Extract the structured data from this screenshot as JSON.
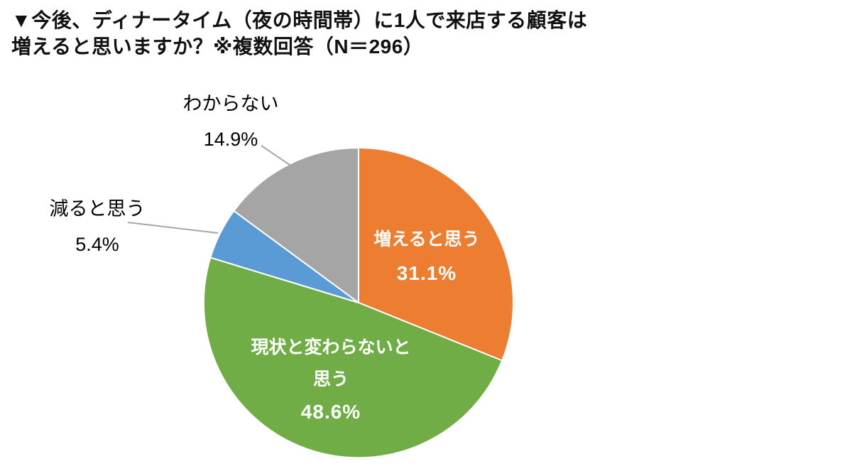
{
  "title": {
    "line1": "▼今後、ディナータイム（夜の時間帯）に1人で来店する顧客は",
    "line2": "増えると思いますか？※複数回答（N＝296）"
  },
  "chart_data": {
    "type": "pie",
    "title": "今後、ディナータイム（夜の時間帯）に1人で来店する顧客は増えると思いますか？",
    "note": "※複数回答（N＝296）",
    "n": 296,
    "total": 100,
    "start_angle_deg": 0,
    "direction": "clockwise",
    "legend": "none",
    "background": "#ffffff",
    "slice_border_color": "#ffffff",
    "leader_line_color": "#a6a6a6",
    "inside_label_color": "#ffffff",
    "outside_label_color": "#000000",
    "slices": [
      {
        "key": "increase",
        "label": "増えると思う",
        "value": 31.1,
        "pct_text": "31.1%",
        "color": "#ED7D31",
        "label_placement": "inside"
      },
      {
        "key": "nochange",
        "label": "現状と変わらないと思う",
        "value": 48.6,
        "pct_text": "48.6%",
        "color": "#70AD47",
        "label_placement": "inside"
      },
      {
        "key": "decrease",
        "label": "減ると思う",
        "value": 5.4,
        "pct_text": "5.4%",
        "color": "#5B9BD5",
        "label_placement": "outside"
      },
      {
        "key": "unknown",
        "label": "わからない",
        "value": 14.9,
        "pct_text": "14.9%",
        "color": "#A5A5A5",
        "label_placement": "outside"
      }
    ]
  },
  "labels": {
    "increase": {
      "lines": [
        "増えると思う",
        "31.1%"
      ]
    },
    "nochange": {
      "lines": [
        "現状と変わらないと",
        "思う",
        "48.6%"
      ]
    },
    "decrease": {
      "lines": [
        "減ると思う",
        "5.4%"
      ]
    },
    "unknown": {
      "lines": [
        "わからない",
        "14.9%"
      ]
    }
  }
}
